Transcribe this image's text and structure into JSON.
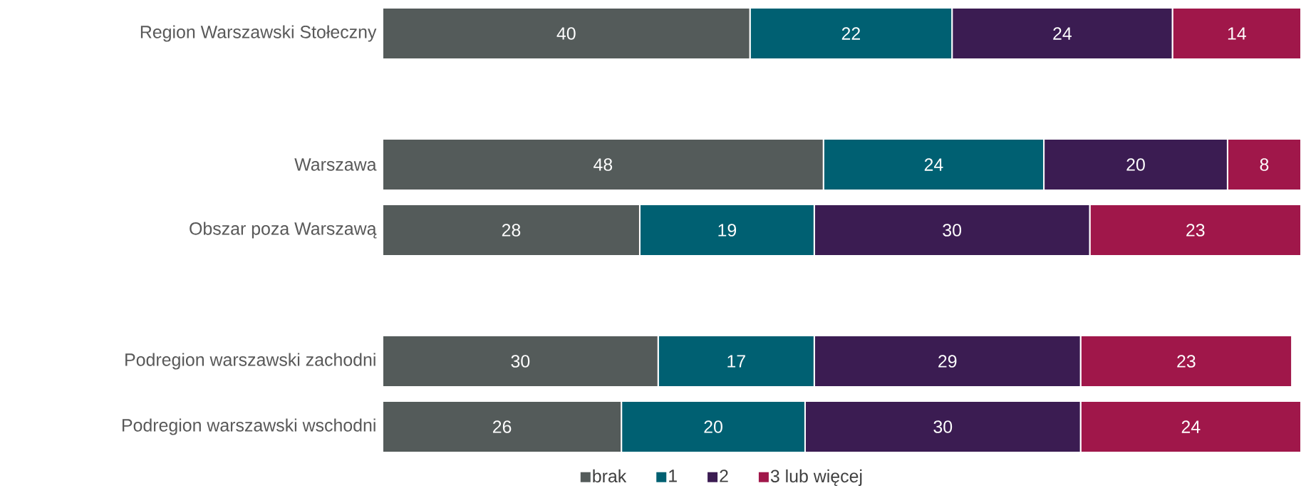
{
  "chart_data": {
    "type": "bar",
    "orientation": "horizontal",
    "stacked": true,
    "data_labels": true,
    "legend": "bottom",
    "tick_labels": "y",
    "categories": [
      "Region Warszawski Stołeczny",
      null,
      "Warszawa",
      "Obszar poza Warszawą",
      null,
      "Podregion warszawski zachodni",
      "Podregion warszawski wschodni"
    ],
    "series": [
      {
        "name": "brak",
        "color": "#545b5a",
        "values": [
          40,
          null,
          48,
          28,
          null,
          30,
          26
        ]
      },
      {
        "name": "1",
        "color": "#006072",
        "values": [
          22,
          null,
          24,
          19,
          null,
          17,
          20
        ]
      },
      {
        "name": "2",
        "color": "#3b1c52",
        "values": [
          24,
          null,
          20,
          30,
          null,
          29,
          30
        ]
      },
      {
        "name": "3 lub więcej",
        "color": "#a0174a",
        "values": [
          14,
          null,
          8,
          23,
          null,
          23,
          24
        ]
      }
    ]
  }
}
